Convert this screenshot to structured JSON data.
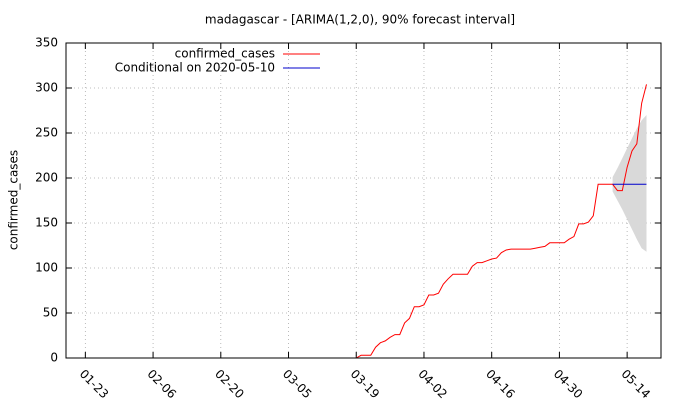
{
  "chart_data": {
    "type": "line",
    "title": "madagascar -  [ARIMA(1,2,0), 90% forecast interval]",
    "y_label": "confirmed_cases",
    "xlim": [
      "01-19",
      "05-21"
    ],
    "xticks": [
      "01-23",
      "02-06",
      "02-20",
      "03-05",
      "03-19",
      "04-02",
      "04-16",
      "04-30",
      "05-14"
    ],
    "ylim": [
      0,
      350
    ],
    "yticks": [
      0,
      50,
      100,
      150,
      200,
      250,
      300,
      350
    ],
    "grid": true,
    "legend": "top-left",
    "series": [
      {
        "name": "confirmed_cases",
        "color": "#ff0000",
        "x": [
          "03-19",
          "03-20",
          "03-21",
          "03-22",
          "03-23",
          "03-24",
          "03-25",
          "03-26",
          "03-27",
          "03-28",
          "03-29",
          "03-30",
          "03-31",
          "04-01",
          "04-02",
          "04-03",
          "04-04",
          "04-05",
          "04-06",
          "04-07",
          "04-08",
          "04-09",
          "04-10",
          "04-11",
          "04-12",
          "04-13",
          "04-14",
          "04-15",
          "04-16",
          "04-17",
          "04-18",
          "04-19",
          "04-20",
          "04-21",
          "04-22",
          "04-23",
          "04-24",
          "04-25",
          "04-26",
          "04-27",
          "04-28",
          "04-29",
          "04-30",
          "05-01",
          "05-02",
          "05-03",
          "05-04",
          "05-05",
          "05-06",
          "05-07",
          "05-08",
          "05-09",
          "05-10",
          "05-11",
          "05-12",
          "05-13",
          "05-14",
          "05-15",
          "05-16",
          "05-17",
          "05-18"
        ],
        "values": [
          0,
          3,
          3,
          3,
          12,
          17,
          19,
          23,
          26,
          26,
          39,
          44,
          57,
          57,
          59,
          70,
          70,
          72,
          82,
          88,
          93,
          93,
          93,
          93,
          102,
          106,
          106,
          108,
          110,
          111,
          117,
          120,
          121,
          121,
          121,
          121,
          121,
          122,
          123,
          124,
          128,
          128,
          128,
          128,
          132,
          135,
          149,
          149,
          151,
          158,
          193,
          193,
          193,
          193,
          186,
          186,
          212,
          230,
          238,
          283,
          304
        ]
      },
      {
        "name": "Conditional on 2020-05-10",
        "color": "#0000cc",
        "x": [
          "05-11",
          "05-12",
          "05-13",
          "05-14",
          "05-15",
          "05-16",
          "05-17",
          "05-18"
        ],
        "values": [
          193,
          193,
          193,
          193,
          193,
          193,
          193,
          193
        ]
      }
    ],
    "interval": {
      "color": "#d9d9d9",
      "x": [
        "05-11",
        "05-12",
        "05-13",
        "05-14",
        "05-15",
        "05-16",
        "05-17",
        "05-18"
      ],
      "lower": [
        185,
        175,
        165,
        154,
        143,
        132,
        122,
        118
      ],
      "upper": [
        201,
        211,
        222,
        233,
        244,
        255,
        264,
        270
      ]
    }
  }
}
